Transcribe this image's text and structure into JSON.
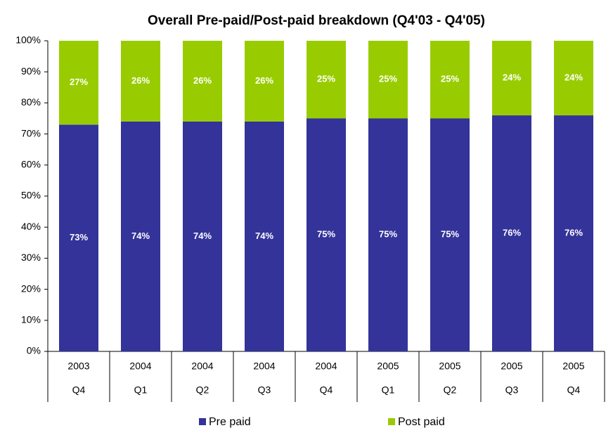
{
  "chart_data": {
    "type": "bar",
    "stacked": true,
    "title": "Overall Pre-paid/Post-paid breakdown (Q4'03 - Q4'05)",
    "category_groups": [
      "2003",
      "2004",
      "2004",
      "2004",
      "2004",
      "2005",
      "2005",
      "2005",
      "2005"
    ],
    "categories": [
      "Q4",
      "Q1",
      "Q2",
      "Q3",
      "Q4",
      "Q1",
      "Q2",
      "Q3",
      "Q4"
    ],
    "series": [
      {
        "name": "Pre paid",
        "color": "#333399",
        "values": [
          73,
          74,
          74,
          74,
          75,
          75,
          75,
          76,
          76
        ],
        "value_labels": [
          "73%",
          "74%",
          "74%",
          "74%",
          "75%",
          "75%",
          "75%",
          "76%",
          "76%"
        ]
      },
      {
        "name": "Post paid",
        "color": "#99cc00",
        "values": [
          27,
          26,
          26,
          26,
          25,
          25,
          25,
          24,
          24
        ],
        "value_labels": [
          "27%",
          "26%",
          "26%",
          "26%",
          "25%",
          "25%",
          "25%",
          "24%",
          "24%"
        ]
      }
    ],
    "ylim": [
      0,
      100
    ],
    "yticks": [
      {
        "value": 0,
        "label": "0%"
      },
      {
        "value": 10,
        "label": "10%"
      },
      {
        "value": 20,
        "label": "20%"
      },
      {
        "value": 30,
        "label": "30%"
      },
      {
        "value": 40,
        "label": "40%"
      },
      {
        "value": 50,
        "label": "50%"
      },
      {
        "value": 60,
        "label": "60%"
      },
      {
        "value": 70,
        "label": "70%"
      },
      {
        "value": 80,
        "label": "80%"
      },
      {
        "value": 90,
        "label": "90%"
      },
      {
        "value": 100,
        "label": "100%"
      }
    ],
    "grid": false,
    "legend": "bottom"
  }
}
